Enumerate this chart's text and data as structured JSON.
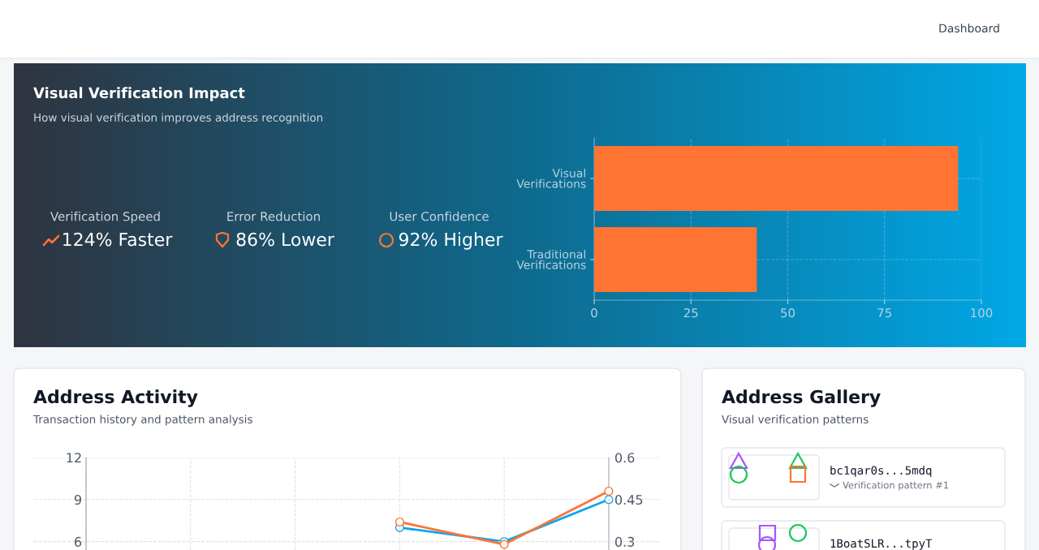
{
  "chart_data": [
    {
      "type": "other",
      "title": "Dashboard"
    },
    {
      "type": "other",
      "title": "Visual Verification Impact",
      "subtitle": "How visual verification improves address recognition",
      "annotations": [
        "Verification Speed",
        "124% Faster",
        "Error Reduction",
        "86% Lower",
        "User Confidence",
        "92% Higher"
      ]
    },
    {
      "type": "bar",
      "orientation": "horizontal",
      "categories": [
        "Visual Verifications",
        "Traditional Verifications"
      ],
      "values": [
        94,
        42
      ],
      "color": "#ff7433",
      "xlim": [
        0,
        100
      ],
      "xticks": [
        0,
        25,
        50,
        75,
        100
      ],
      "grid": true
    },
    {
      "type": "line",
      "title": "Address Activity",
      "subtitle": "Transaction history and pattern analysis",
      "categories": [
        null,
        null,
        null,
        null,
        null,
        null
      ],
      "marker": "circle",
      "grid": true,
      "series": [
        {
          "color": "#ff7433",
          "values": [
            null,
            null,
            null,
            7.4,
            5.8,
            9.6
          ]
        },
        {
          "color": "#0ea5e9",
          "axis": "y2",
          "values": [
            null,
            null,
            null,
            0.35,
            0.3,
            0.45
          ]
        }
      ],
      "ylim": [
        5.4,
        12
      ],
      "yticks": [
        6,
        9,
        12
      ],
      "y2lim": [
        0.27,
        0.6
      ],
      "y2ticks": [
        0.3,
        0.45,
        0.6
      ]
    },
    {
      "type": "other",
      "title": "Address Gallery",
      "subtitle": "Visual verification patterns",
      "annotations": [
        "bc1qar0s...5mdq",
        "Verification pattern #1",
        "1BoatSLR...tpyT"
      ]
    }
  ]
}
